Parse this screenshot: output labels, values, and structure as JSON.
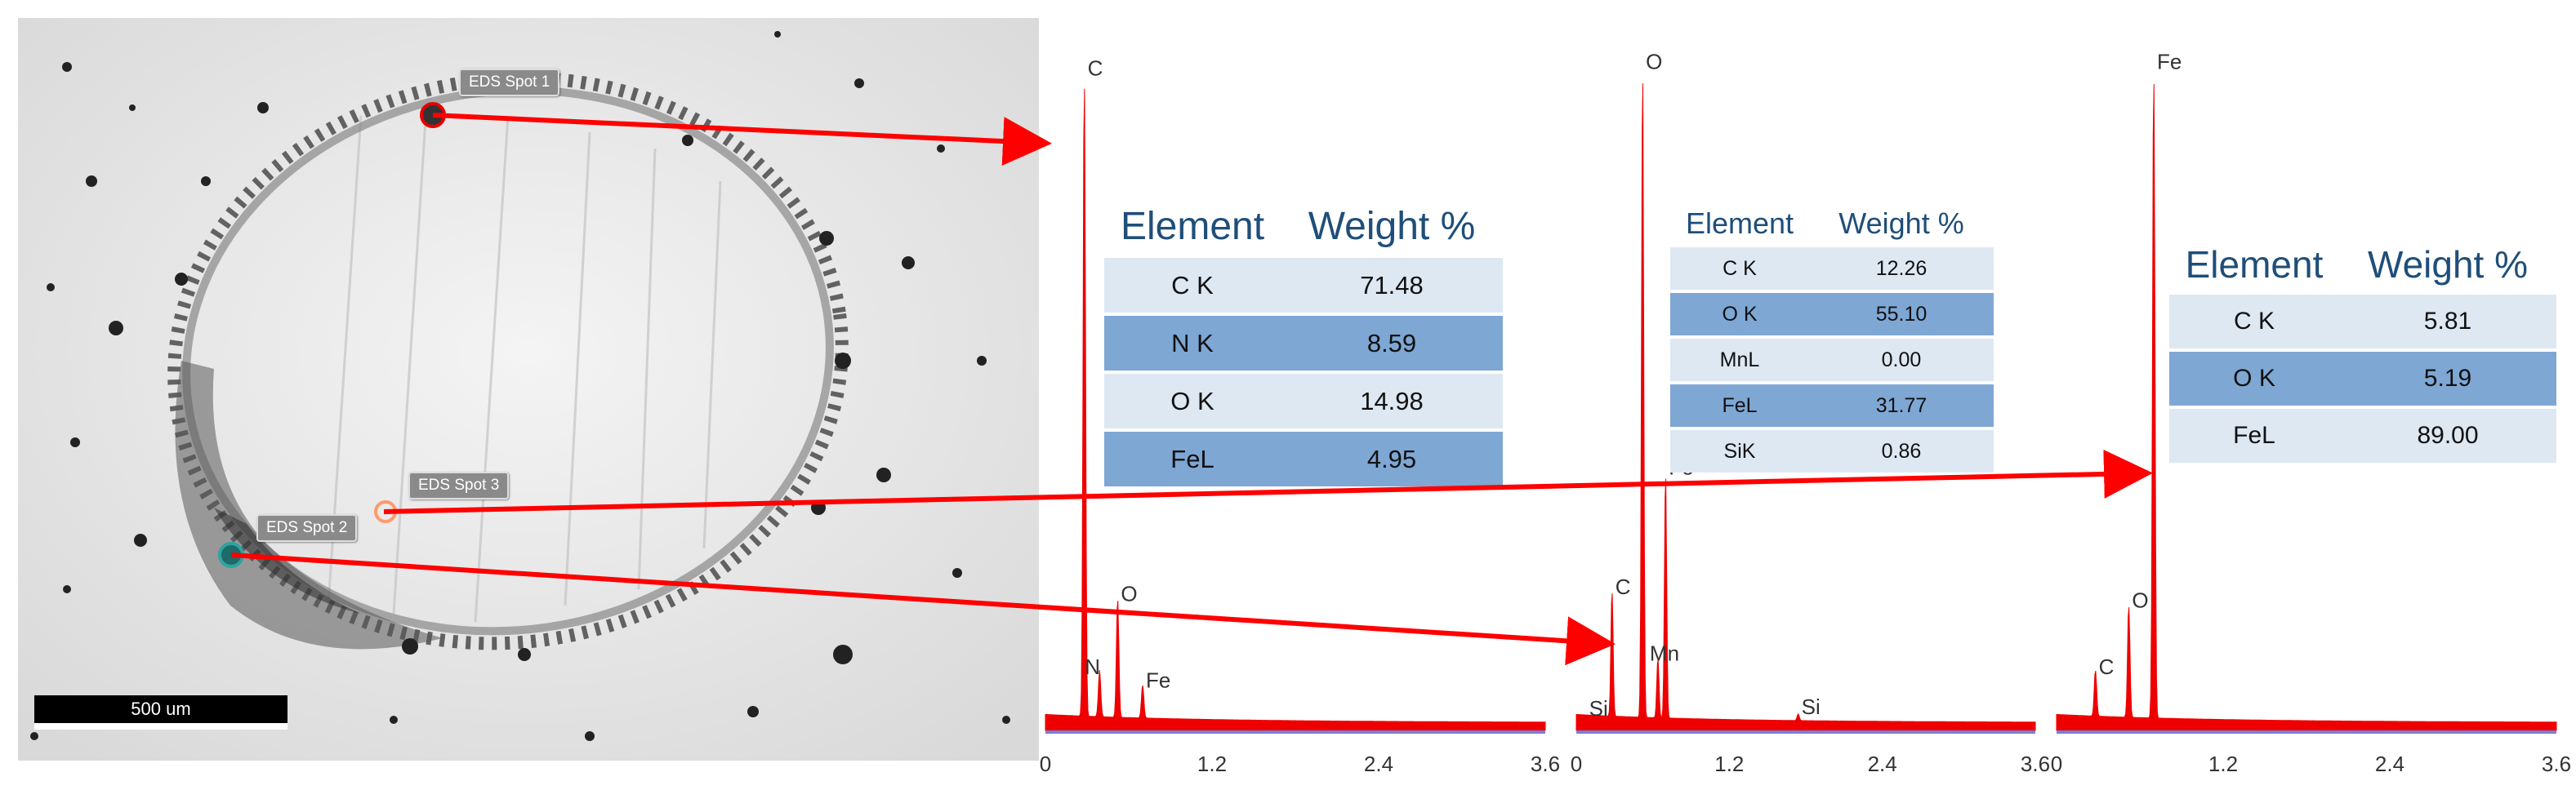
{
  "micrograph": {
    "scale_bar_label": "500 um",
    "spot_labels": [
      "EDS Spot 1",
      "EDS Spot 2",
      "EDS Spot 3"
    ],
    "colors": {
      "spot1": "#e60000",
      "spot2": "#2fa3a0",
      "spot3": "#ff9a6a",
      "arrow": "#ff0000"
    }
  },
  "chart_data": [
    {
      "type": "area",
      "spot": "EDS Spot 1",
      "xlim": [
        0,
        3.6
      ],
      "x_ticks": [
        "0",
        "1.2",
        "2.4",
        "3.6"
      ],
      "peaks": [
        {
          "label": "C",
          "x": 0.28,
          "y": 0.97
        },
        {
          "label": "N",
          "x": 0.39,
          "y": 0.07
        },
        {
          "label": "O",
          "x": 0.52,
          "y": 0.18
        },
        {
          "label": "Fe",
          "x": 0.7,
          "y": 0.05
        }
      ],
      "fill_color": "#ee0000"
    },
    {
      "type": "area",
      "spot": "EDS Spot 2",
      "xlim": [
        0,
        3.6
      ],
      "x_ticks": [
        "0",
        "1.2",
        "2.4",
        "3.6"
      ],
      "peaks": [
        {
          "label": "C",
          "x": 0.28,
          "y": 0.19
        },
        {
          "label": "O",
          "x": 0.52,
          "y": 0.98
        },
        {
          "label": "Fe",
          "x": 0.7,
          "y": 0.37
        },
        {
          "label": "Mn",
          "x": 0.64,
          "y": 0.09
        },
        {
          "label": "Si",
          "x": 1.74,
          "y": 0.01
        }
      ],
      "extra_labels": [
        {
          "label": "Si",
          "x": 0.1
        }
      ],
      "fill_color": "#ee0000"
    },
    {
      "type": "area",
      "spot": "EDS Spot 3",
      "xlim": [
        0,
        3.6
      ],
      "x_ticks": [
        "0",
        "1.2",
        "2.4",
        "3.6"
      ],
      "peaks": [
        {
          "label": "C",
          "x": 0.28,
          "y": 0.07
        },
        {
          "label": "O",
          "x": 0.52,
          "y": 0.17
        },
        {
          "label": "Fe",
          "x": 0.7,
          "y": 0.98
        }
      ],
      "fill_color": "#ee0000"
    }
  ],
  "tables": [
    {
      "headers": [
        "Element",
        "Weight %"
      ],
      "rows": [
        {
          "element": "C K",
          "weight": "71.48"
        },
        {
          "element": "N K",
          "weight": "8.59"
        },
        {
          "element": "O K",
          "weight": "14.98"
        },
        {
          "element": "FeL",
          "weight": "4.95"
        }
      ]
    },
    {
      "headers": [
        "Element",
        "Weight %"
      ],
      "rows": [
        {
          "element": "C K",
          "weight": "12.26"
        },
        {
          "element": "O K",
          "weight": "55.10"
        },
        {
          "element": "MnL",
          "weight": "0.00"
        },
        {
          "element": "FeL",
          "weight": "31.77"
        },
        {
          "element": "SiK",
          "weight": "0.86"
        }
      ]
    },
    {
      "headers": [
        "Element",
        "Weight %"
      ],
      "rows": [
        {
          "element": "C K",
          "weight": "5.81"
        },
        {
          "element": "O K",
          "weight": "5.19"
        },
        {
          "element": "FeL",
          "weight": "89.00"
        }
      ]
    }
  ]
}
